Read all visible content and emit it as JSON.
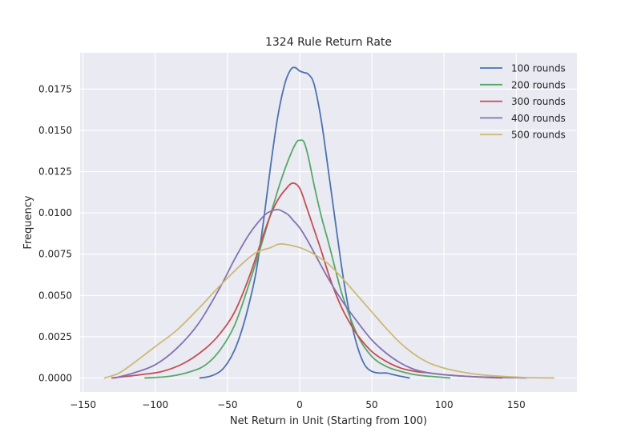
{
  "chart_data": {
    "type": "line",
    "title": "1324 Rule Return Rate",
    "xlabel": "Net Return in Unit (Starting from 100)",
    "ylabel": "Frequency",
    "xlim": [
      -152,
      192
    ],
    "ylim": [
      -0.00085,
      0.0197
    ],
    "xticks": [
      -150,
      -100,
      -50,
      0,
      50,
      100,
      150
    ],
    "xtick_labels": [
      "−150",
      "−100",
      "−50",
      "0",
      "50",
      "100",
      "150"
    ],
    "yticks": [
      0.0,
      0.0025,
      0.005,
      0.0075,
      0.01,
      0.0125,
      0.015,
      0.0175
    ],
    "ytick_labels": [
      "0.0000",
      "0.0025",
      "0.0050",
      "0.0075",
      "0.0100",
      "0.0125",
      "0.0150",
      "0.0175"
    ],
    "grid": true,
    "legend_position": "top-right",
    "style": {
      "background": "#EAEAF2",
      "grid_color": "#FFFFFF"
    },
    "series": [
      {
        "name": "100 rounds",
        "color": "#4C72B0",
        "x": [
          -69,
          -62,
          -55,
          -50,
          -45,
          -40,
          -35,
          -30,
          -25,
          -20,
          -15,
          -10,
          -6,
          -3,
          0,
          3,
          6,
          10,
          15,
          20,
          25,
          30,
          35,
          40,
          45,
          50,
          55,
          60,
          65,
          70,
          76
        ],
        "y": [
          0.0,
          0.0001,
          0.0004,
          0.0009,
          0.0017,
          0.0029,
          0.0045,
          0.0065,
          0.0095,
          0.0129,
          0.0159,
          0.0179,
          0.0187,
          0.0188,
          0.0186,
          0.0185,
          0.0184,
          0.0178,
          0.0156,
          0.0125,
          0.0093,
          0.0062,
          0.0037,
          0.0019,
          0.0008,
          0.0004,
          0.0003,
          0.0003,
          0.0002,
          0.0001,
          0.0
        ]
      },
      {
        "name": "200 rounds",
        "color": "#55A868",
        "x": [
          -107,
          -90,
          -75,
          -65,
          -55,
          -45,
          -35,
          -25,
          -15,
          -10,
          -5,
          -2,
          0,
          3,
          6,
          10,
          15,
          20,
          25,
          30,
          40,
          50,
          60,
          70,
          80,
          90,
          104
        ],
        "y": [
          0.0,
          0.0001,
          0.0004,
          0.0008,
          0.0017,
          0.0032,
          0.0057,
          0.0085,
          0.0114,
          0.0127,
          0.0138,
          0.0143,
          0.0144,
          0.0143,
          0.0134,
          0.0117,
          0.0098,
          0.0082,
          0.0065,
          0.0049,
          0.0026,
          0.0013,
          0.0007,
          0.0004,
          0.0002,
          0.0001,
          0.0
        ]
      },
      {
        "name": "300 rounds",
        "color": "#C44E52",
        "x": [
          -130,
          -110,
          -95,
          -80,
          -65,
          -55,
          -45,
          -35,
          -25,
          -20,
          -15,
          -10,
          -5,
          0,
          5,
          10,
          15,
          20,
          25,
          30,
          35,
          40,
          50,
          60,
          70,
          80,
          90,
          100,
          115,
          130,
          140
        ],
        "y": [
          0.0,
          0.0002,
          0.0004,
          0.0009,
          0.0018,
          0.0027,
          0.004,
          0.0061,
          0.0087,
          0.0099,
          0.0108,
          0.0114,
          0.0118,
          0.0115,
          0.0103,
          0.009,
          0.0077,
          0.0063,
          0.0051,
          0.0041,
          0.0033,
          0.0026,
          0.0016,
          0.001,
          0.0006,
          0.0004,
          0.0003,
          0.0002,
          0.0001,
          3e-05,
          0.0
        ]
      },
      {
        "name": "400 rounds",
        "color": "#8172B2",
        "x": [
          -128,
          -115,
          -100,
          -85,
          -70,
          -55,
          -45,
          -35,
          -25,
          -20,
          -15,
          -12,
          -8,
          -5,
          0,
          5,
          10,
          20,
          30,
          40,
          50,
          60,
          70,
          80,
          90,
          100,
          115,
          130,
          145,
          157
        ],
        "y": [
          0.0,
          0.0003,
          0.0008,
          0.0018,
          0.0033,
          0.0055,
          0.0072,
          0.0087,
          0.0098,
          0.0101,
          0.0102,
          0.0101,
          0.0099,
          0.0096,
          0.0091,
          0.0084,
          0.0076,
          0.006,
          0.0046,
          0.0034,
          0.0023,
          0.0015,
          0.0009,
          0.0005,
          0.0003,
          0.0002,
          0.0001,
          5e-05,
          2e-05,
          0.0
        ]
      },
      {
        "name": "500 rounds",
        "color": "#CCB974",
        "x": [
          -135,
          -125,
          -115,
          -100,
          -85,
          -70,
          -55,
          -40,
          -30,
          -20,
          -15,
          -10,
          0,
          10,
          20,
          30,
          40,
          50,
          60,
          70,
          80,
          90,
          100,
          110,
          125,
          140,
          155,
          176
        ],
        "y": [
          0.0,
          0.0003,
          0.0009,
          0.0019,
          0.0029,
          0.0042,
          0.0056,
          0.0069,
          0.0076,
          0.0079,
          0.0081,
          0.0081,
          0.0079,
          0.0075,
          0.0069,
          0.006,
          0.005,
          0.004,
          0.003,
          0.0021,
          0.0014,
          0.0009,
          0.0006,
          0.0004,
          0.0002,
          0.0001,
          3e-05,
          0.0
        ]
      }
    ]
  }
}
